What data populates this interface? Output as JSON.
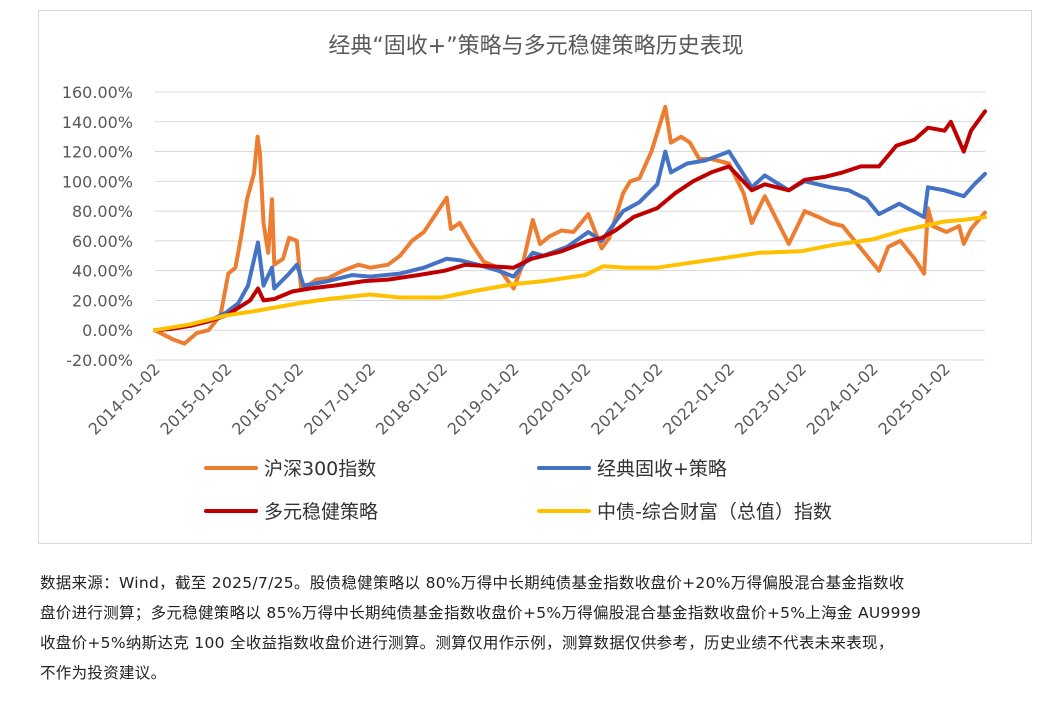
{
  "chart_data": {
    "type": "line",
    "title": "经典“固收+”策略与多元稳健策略历史表现",
    "xlabel": "",
    "ylabel": "",
    "ylim": [
      -0.2,
      1.6
    ],
    "ytick_step": 0.2,
    "yticks": [
      "-20.00%",
      "0.00%",
      "20.00%",
      "40.00%",
      "60.00%",
      "80.00%",
      "100.00%",
      "120.00%",
      "140.00%",
      "160.00%"
    ],
    "xlim": [
      "2014-01-02",
      "2025-07-25"
    ],
    "xticks": [
      "2014-01-02",
      "2015-01-02",
      "2016-01-02",
      "2017-01-02",
      "2018-01-02",
      "2019-01-02",
      "2020-01-02",
      "2021-01-02",
      "2022-01-02",
      "2023-01-02",
      "2024-01-02",
      "2025-01-02"
    ],
    "grid": "horizontal",
    "legend_position": "bottom",
    "series": [
      {
        "name": "沪深300指数",
        "color": "#ED7D31",
        "points": [
          [
            "2014-01-02",
            0.0
          ],
          [
            "2014-04-01",
            -0.06
          ],
          [
            "2014-06-01",
            -0.09
          ],
          [
            "2014-08-01",
            -0.02
          ],
          [
            "2014-10-01",
            0.0
          ],
          [
            "2014-12-01",
            0.1
          ],
          [
            "2015-01-10",
            0.38
          ],
          [
            "2015-02-15",
            0.42
          ],
          [
            "2015-03-15",
            0.62
          ],
          [
            "2015-04-15",
            0.88
          ],
          [
            "2015-05-20",
            1.05
          ],
          [
            "2015-06-08",
            1.3
          ],
          [
            "2015-06-20",
            1.18
          ],
          [
            "2015-07-08",
            0.72
          ],
          [
            "2015-08-01",
            0.52
          ],
          [
            "2015-08-20",
            0.88
          ],
          [
            "2015-09-01",
            0.44
          ],
          [
            "2015-10-15",
            0.48
          ],
          [
            "2015-11-15",
            0.62
          ],
          [
            "2015-12-25",
            0.6
          ],
          [
            "2016-01-15",
            0.28
          ],
          [
            "2016-02-20",
            0.3
          ],
          [
            "2016-04-01",
            0.34
          ],
          [
            "2016-06-01",
            0.35
          ],
          [
            "2016-08-15",
            0.4
          ],
          [
            "2016-11-01",
            0.44
          ],
          [
            "2017-01-01",
            0.42
          ],
          [
            "2017-04-01",
            0.44
          ],
          [
            "2017-06-01",
            0.5
          ],
          [
            "2017-08-01",
            0.6
          ],
          [
            "2017-10-01",
            0.66
          ],
          [
            "2017-11-20",
            0.76
          ],
          [
            "2018-01-25",
            0.89
          ],
          [
            "2018-02-15",
            0.68
          ],
          [
            "2018-04-01",
            0.72
          ],
          [
            "2018-06-01",
            0.58
          ],
          [
            "2018-08-01",
            0.46
          ],
          [
            "2018-10-15",
            0.42
          ],
          [
            "2018-12-31",
            0.28
          ],
          [
            "2019-02-15",
            0.44
          ],
          [
            "2019-04-08",
            0.74
          ],
          [
            "2019-05-15",
            0.58
          ],
          [
            "2019-07-01",
            0.63
          ],
          [
            "2019-09-01",
            0.67
          ],
          [
            "2019-11-01",
            0.66
          ],
          [
            "2020-01-15",
            0.78
          ],
          [
            "2020-03-23",
            0.55
          ],
          [
            "2020-05-01",
            0.62
          ],
          [
            "2020-07-10",
            0.92
          ],
          [
            "2020-08-15",
            1.0
          ],
          [
            "2020-10-01",
            1.02
          ],
          [
            "2020-12-01",
            1.2
          ],
          [
            "2021-02-10",
            1.5
          ],
          [
            "2021-03-10",
            1.26
          ],
          [
            "2021-05-01",
            1.3
          ],
          [
            "2021-06-15",
            1.26
          ],
          [
            "2021-08-01",
            1.15
          ],
          [
            "2021-10-01",
            1.15
          ],
          [
            "2021-12-31",
            1.12
          ],
          [
            "2022-03-15",
            0.92
          ],
          [
            "2022-04-26",
            0.72
          ],
          [
            "2022-07-01",
            0.9
          ],
          [
            "2022-10-31",
            0.58
          ],
          [
            "2023-01-20",
            0.8
          ],
          [
            "2023-04-01",
            0.76
          ],
          [
            "2023-06-01",
            0.72
          ],
          [
            "2023-08-01",
            0.7
          ],
          [
            "2023-10-01",
            0.6
          ],
          [
            "2024-02-02",
            0.4
          ],
          [
            "2024-03-20",
            0.56
          ],
          [
            "2024-05-20",
            0.6
          ],
          [
            "2024-08-01",
            0.48
          ],
          [
            "2024-09-18",
            0.38
          ],
          [
            "2024-10-08",
            0.82
          ],
          [
            "2024-11-01",
            0.7
          ],
          [
            "2025-01-10",
            0.66
          ],
          [
            "2025-03-15",
            0.7
          ],
          [
            "2025-04-08",
            0.58
          ],
          [
            "2025-05-15",
            0.68
          ],
          [
            "2025-07-25",
            0.79
          ]
        ]
      },
      {
        "name": "经典固收+策略",
        "color": "#4472C4",
        "points": [
          [
            "2014-01-02",
            0.0
          ],
          [
            "2014-04-01",
            0.01
          ],
          [
            "2014-07-01",
            0.03
          ],
          [
            "2014-10-01",
            0.06
          ],
          [
            "2014-12-31",
            0.12
          ],
          [
            "2015-03-01",
            0.18
          ],
          [
            "2015-04-20",
            0.3
          ],
          [
            "2015-06-10",
            0.59
          ],
          [
            "2015-07-08",
            0.3
          ],
          [
            "2015-08-20",
            0.42
          ],
          [
            "2015-09-01",
            0.28
          ],
          [
            "2015-11-15",
            0.38
          ],
          [
            "2015-12-25",
            0.44
          ],
          [
            "2016-01-28",
            0.3
          ],
          [
            "2016-06-01",
            0.33
          ],
          [
            "2016-10-01",
            0.37
          ],
          [
            "2017-01-01",
            0.36
          ],
          [
            "2017-06-01",
            0.38
          ],
          [
            "2017-10-01",
            0.42
          ],
          [
            "2018-01-25",
            0.48
          ],
          [
            "2018-04-01",
            0.47
          ],
          [
            "2018-07-01",
            0.44
          ],
          [
            "2018-10-15",
            0.4
          ],
          [
            "2018-12-31",
            0.36
          ],
          [
            "2019-04-08",
            0.52
          ],
          [
            "2019-06-01",
            0.5
          ],
          [
            "2019-10-01",
            0.56
          ],
          [
            "2020-01-15",
            0.66
          ],
          [
            "2020-03-23",
            0.6
          ],
          [
            "2020-07-10",
            0.8
          ],
          [
            "2020-10-01",
            0.86
          ],
          [
            "2020-12-31",
            0.98
          ],
          [
            "2021-02-10",
            1.2
          ],
          [
            "2021-03-10",
            1.06
          ],
          [
            "2021-06-01",
            1.12
          ],
          [
            "2021-09-01",
            1.14
          ],
          [
            "2021-12-31",
            1.2
          ],
          [
            "2022-04-26",
            0.96
          ],
          [
            "2022-07-01",
            1.04
          ],
          [
            "2022-10-31",
            0.94
          ],
          [
            "2023-01-20",
            1.0
          ],
          [
            "2023-06-01",
            0.96
          ],
          [
            "2023-09-01",
            0.94
          ],
          [
            "2023-12-01",
            0.88
          ],
          [
            "2024-02-02",
            0.78
          ],
          [
            "2024-05-15",
            0.85
          ],
          [
            "2024-09-18",
            0.76
          ],
          [
            "2024-10-08",
            0.96
          ],
          [
            "2024-12-31",
            0.94
          ],
          [
            "2025-04-08",
            0.9
          ],
          [
            "2025-06-01",
            0.98
          ],
          [
            "2025-07-25",
            1.05
          ]
        ]
      },
      {
        "name": "多元稳健策略",
        "color": "#C00000",
        "points": [
          [
            "2014-01-02",
            0.0
          ],
          [
            "2014-04-01",
            0.01
          ],
          [
            "2014-07-01",
            0.03
          ],
          [
            "2014-10-01",
            0.06
          ],
          [
            "2014-12-31",
            0.1
          ],
          [
            "2015-03-01",
            0.15
          ],
          [
            "2015-05-01",
            0.2
          ],
          [
            "2015-06-10",
            0.28
          ],
          [
            "2015-07-08",
            0.2
          ],
          [
            "2015-09-01",
            0.21
          ],
          [
            "2015-12-01",
            0.26
          ],
          [
            "2016-03-01",
            0.28
          ],
          [
            "2016-07-01",
            0.3
          ],
          [
            "2016-12-01",
            0.33
          ],
          [
            "2017-04-01",
            0.34
          ],
          [
            "2017-09-01",
            0.37
          ],
          [
            "2018-01-15",
            0.4
          ],
          [
            "2018-05-01",
            0.44
          ],
          [
            "2018-09-01",
            0.43
          ],
          [
            "2018-12-31",
            0.42
          ],
          [
            "2019-04-01",
            0.48
          ],
          [
            "2019-09-01",
            0.53
          ],
          [
            "2020-01-15",
            0.6
          ],
          [
            "2020-03-23",
            0.62
          ],
          [
            "2020-06-01",
            0.67
          ],
          [
            "2020-09-01",
            0.76
          ],
          [
            "2020-12-31",
            0.82
          ],
          [
            "2021-04-01",
            0.92
          ],
          [
            "2021-07-01",
            1.0
          ],
          [
            "2021-10-01",
            1.06
          ],
          [
            "2021-12-31",
            1.1
          ],
          [
            "2022-04-26",
            0.94
          ],
          [
            "2022-07-01",
            0.98
          ],
          [
            "2022-10-31",
            0.94
          ],
          [
            "2023-01-20",
            1.01
          ],
          [
            "2023-05-01",
            1.03
          ],
          [
            "2023-08-01",
            1.06
          ],
          [
            "2023-11-01",
            1.1
          ],
          [
            "2024-02-02",
            1.1
          ],
          [
            "2024-05-01",
            1.24
          ],
          [
            "2024-08-01",
            1.28
          ],
          [
            "2024-10-08",
            1.36
          ],
          [
            "2024-12-31",
            1.34
          ],
          [
            "2025-02-01",
            1.4
          ],
          [
            "2025-04-08",
            1.2
          ],
          [
            "2025-05-15",
            1.34
          ],
          [
            "2025-07-25",
            1.47
          ]
        ]
      },
      {
        "name": "中债-综合财富（总值）指数",
        "color": "#FFC000",
        "points": [
          [
            "2014-01-02",
            0.0
          ],
          [
            "2014-07-01",
            0.04
          ],
          [
            "2014-12-31",
            0.1
          ],
          [
            "2015-06-01",
            0.13
          ],
          [
            "2015-12-31",
            0.18
          ],
          [
            "2016-06-01",
            0.21
          ],
          [
            "2016-12-31",
            0.24
          ],
          [
            "2017-06-01",
            0.22
          ],
          [
            "2017-12-31",
            0.22
          ],
          [
            "2018-06-01",
            0.26
          ],
          [
            "2018-12-31",
            0.31
          ],
          [
            "2019-06-01",
            0.33
          ],
          [
            "2019-12-31",
            0.37
          ],
          [
            "2020-04-01",
            0.43
          ],
          [
            "2020-08-01",
            0.42
          ],
          [
            "2020-12-31",
            0.42
          ],
          [
            "2021-06-01",
            0.45
          ],
          [
            "2021-12-31",
            0.49
          ],
          [
            "2022-06-01",
            0.52
          ],
          [
            "2022-12-31",
            0.53
          ],
          [
            "2023-06-01",
            0.57
          ],
          [
            "2023-12-31",
            0.61
          ],
          [
            "2024-06-01",
            0.67
          ],
          [
            "2024-12-31",
            0.73
          ],
          [
            "2025-04-01",
            0.74
          ],
          [
            "2025-07-25",
            0.76
          ]
        ]
      }
    ]
  },
  "note": {
    "lines": [
      "数据来源：Wind，截至 2025/7/25。股债稳健策略以 80%万得中长期纯债基金指数收盘价+20%万得偏股混合基金指数收",
      "盘价进行测算；多元稳健策略以 85%万得中长期纯债基金指数收盘价+5%万得偏股混合基金指数收盘价+5%上海金 AU9999",
      "收盘价+5%纳斯达克 100 全收益指数收盘价进行测算。测算仅用作示例，测算数据仅供参考，历史业绩不代表未来表现，",
      "不作为投资建议。"
    ]
  }
}
